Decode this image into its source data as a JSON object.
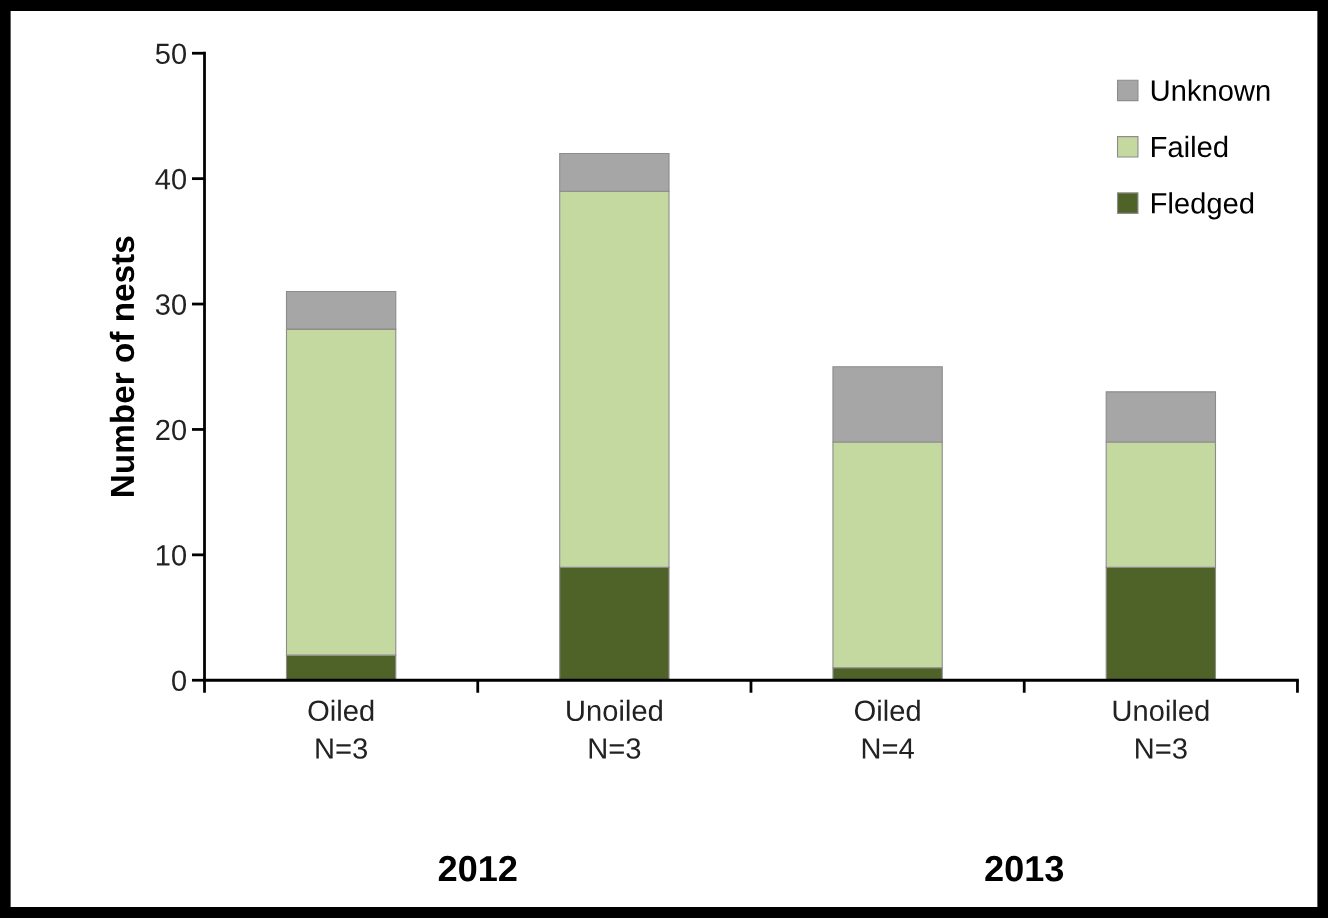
{
  "chart_data": {
    "type": "bar",
    "stacked": true,
    "ylabel": "Number of nests",
    "categories": [
      "Oiled\nN=3",
      "Unoiled\nN=3",
      "Oiled\nN=4",
      "Unoiled\nN=3"
    ],
    "series": [
      {
        "name": "Fledged",
        "color": "#4f6228",
        "values": [
          2,
          9,
          1,
          9
        ]
      },
      {
        "name": "Failed",
        "color": "#c4d9a0",
        "values": [
          26,
          30,
          18,
          10
        ]
      },
      {
        "name": "Unknown",
        "color": "#a6a6a6",
        "values": [
          3,
          3,
          6,
          4
        ]
      }
    ],
    "ylim": [
      0,
      50
    ],
    "yticks": [
      0,
      10,
      20,
      30,
      40,
      50
    ],
    "grid": false,
    "legend": "top right",
    "annotations": [
      "2012",
      "2013"
    ]
  }
}
